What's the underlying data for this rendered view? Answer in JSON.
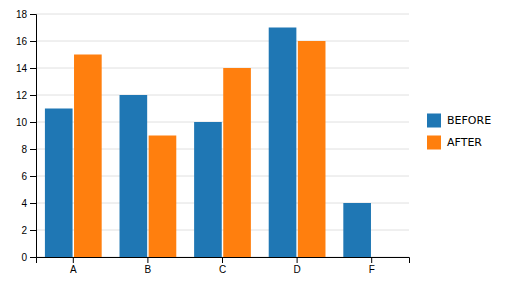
{
  "chart_data": {
    "type": "bar",
    "categories": [
      "A",
      "B",
      "C",
      "D",
      "F"
    ],
    "series": [
      {
        "name": "BEFORE",
        "values": [
          11,
          12,
          10,
          17,
          4
        ]
      },
      {
        "name": "AFTER",
        "values": [
          15,
          9,
          14,
          16,
          0
        ]
      }
    ],
    "ylim": [
      0,
      18
    ],
    "yticks": [
      0,
      2,
      4,
      6,
      8,
      10,
      12,
      14,
      16,
      18
    ],
    "grid": true,
    "legend": "right"
  }
}
